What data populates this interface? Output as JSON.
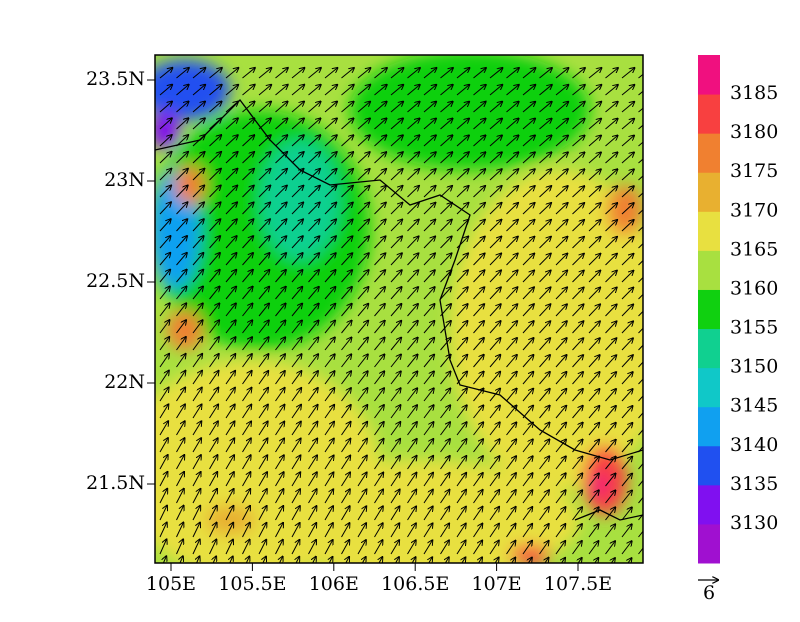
{
  "map": {
    "lat_labels": [
      "23.5N",
      "23N",
      "22.5N",
      "22N",
      "21.5N"
    ],
    "lon_labels": [
      "105E",
      "105.5E",
      "106E",
      "106.5E",
      "107E",
      "107.5E"
    ],
    "colorbar": {
      "levels": [
        3130,
        3135,
        3140,
        3145,
        3150,
        3155,
        3160,
        3165,
        3170,
        3175,
        3180,
        3185
      ],
      "colors": [
        "#a010d0",
        "#8010f0",
        "#2050f0",
        "#10a0f0",
        "#10c8c8",
        "#10d090",
        "#10d010",
        "#a8e040",
        "#e8e040",
        "#e8b030",
        "#f08030",
        "#f84040",
        "#f0107f"
      ]
    },
    "reference_vector": "6"
  }
}
